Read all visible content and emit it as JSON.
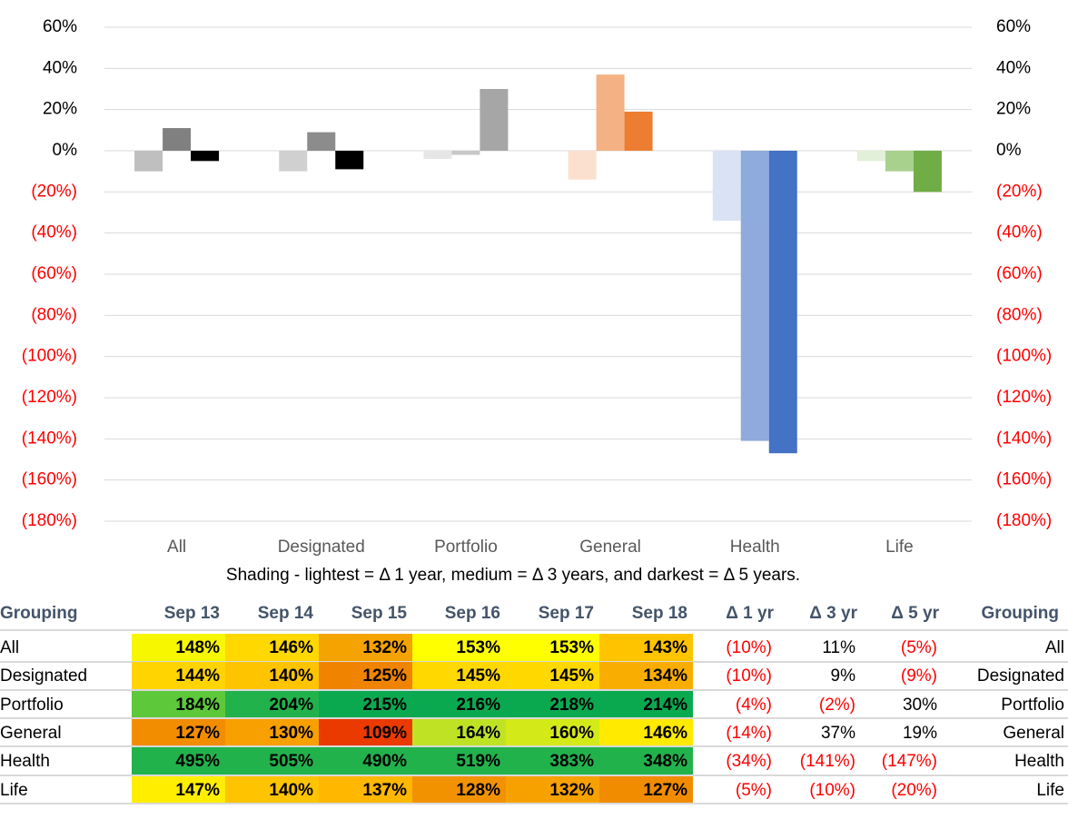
{
  "chart_data": {
    "type": "bar",
    "categories": [
      "All",
      "Designated",
      "Portfolio",
      "General",
      "Health",
      "Life"
    ],
    "series": [
      {
        "values": [
          -10,
          -10,
          -4,
          -14,
          -34,
          -5
        ],
        "colors": [
          "#bfbfbf",
          "#d0d0d0",
          "#e6e6e6",
          "#fbe0d0",
          "#dae3f3",
          "#e2f0d9"
        ]
      },
      {
        "values": [
          11,
          9,
          -2,
          37,
          -141,
          -10
        ],
        "colors": [
          "#808080",
          "#8c8c8c",
          "#c8c8c8",
          "#f4b183",
          "#8faadc",
          "#a9d18e"
        ]
      },
      {
        "values": [
          -5,
          -9,
          30,
          19,
          -147,
          -20
        ],
        "colors": [
          "#000000",
          "#000000",
          "#a6a6a6",
          "#ed7d31",
          "#4472c4",
          "#70ad47"
        ]
      }
    ],
    "ylim": [
      -180,
      60
    ],
    "yticks": [
      {
        "value": -180,
        "label": "(180%)"
      },
      {
        "value": -160,
        "label": "(160%)"
      },
      {
        "value": -140,
        "label": "(140%)"
      },
      {
        "value": -120,
        "label": "(120%)"
      },
      {
        "value": -100,
        "label": "(100%)"
      },
      {
        "value": -80,
        "label": "(80%)"
      },
      {
        "value": -60,
        "label": "(60%)"
      },
      {
        "value": -40,
        "label": "(40%)"
      },
      {
        "value": -20,
        "label": "(20%)"
      },
      {
        "value": 0,
        "label": "0%"
      },
      {
        "value": 20,
        "label": "20%"
      },
      {
        "value": 40,
        "label": "40%"
      },
      {
        "value": 60,
        "label": "60%"
      }
    ],
    "grid": true,
    "negative_color": "#ff0000"
  },
  "caption": "Shading - lightest = Δ 1 year, medium = Δ 3 years, and darkest = Δ 5 years.",
  "table": {
    "header": [
      "Grouping",
      "Sep 13",
      "Sep 14",
      "Sep 15",
      "Sep 16",
      "Sep 17",
      "Sep 18",
      "Δ 1 yr",
      "Δ 3 yr",
      "Δ 5 yr",
      "Grouping"
    ],
    "rows": [
      [
        "All",
        "148%",
        "146%",
        "132%",
        "153%",
        "153%",
        "143%",
        "(10%)",
        "11%",
        "(5%)",
        "All"
      ],
      [
        "Designated",
        "144%",
        "140%",
        "125%",
        "145%",
        "145%",
        "134%",
        "(10%)",
        "9%",
        "(9%)",
        "Designated"
      ],
      [
        "Portfolio",
        "184%",
        "204%",
        "215%",
        "216%",
        "218%",
        "214%",
        "(4%)",
        "(2%)",
        "30%",
        "Portfolio"
      ],
      [
        "General",
        "127%",
        "130%",
        "109%",
        "164%",
        "160%",
        "146%",
        "(14%)",
        "37%",
        "19%",
        "General"
      ],
      [
        "Health",
        "495%",
        "505%",
        "490%",
        "519%",
        "383%",
        "348%",
        "(34%)",
        "(141%)",
        "(147%)",
        "Health"
      ],
      [
        "Life",
        "147%",
        "140%",
        "137%",
        "128%",
        "132%",
        "127%",
        "(5%)",
        "(10%)",
        "(20%)",
        "Life"
      ]
    ],
    "cell_colors": [
      [
        "#f7f700",
        "#ffd800",
        "#f5a300",
        "#ffff00",
        "#ffff00",
        "#ffc400"
      ],
      [
        "#ffd400",
        "#ffc400",
        "#f08400",
        "#ffd800",
        "#ffd800",
        "#f9ad00"
      ],
      [
        "#5cc83a",
        "#22b24c",
        "#0aa94f",
        "#0aa94f",
        "#0aa94f",
        "#0aa94f"
      ],
      [
        "#f28d00",
        "#f7a000",
        "#ea3a00",
        "#bfe324",
        "#d4ea18",
        "#ffea00"
      ],
      [
        "#22b24c",
        "#22b24c",
        "#22b24c",
        "#22b24c",
        "#22b24c",
        "#22b24c"
      ],
      [
        "#ffee00",
        "#ffc400",
        "#ffb700",
        "#f29200",
        "#f7a100",
        "#f18c00"
      ]
    ]
  }
}
